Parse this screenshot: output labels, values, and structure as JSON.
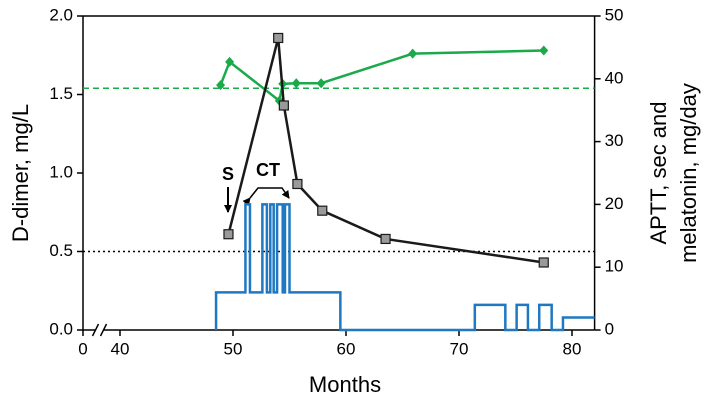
{
  "chart_data": {
    "type": "line",
    "x_label": "Months",
    "y_label": "D-dimer, mg/L",
    "y2_label": [
      "APTT, sec and",
      "melatonin, mg/day"
    ],
    "annotations": [
      "S",
      "CT"
    ],
    "xlim": [
      0,
      82
    ],
    "x_axis_break": true,
    "xticks": [
      0,
      40,
      50,
      60,
      70,
      80
    ],
    "ylim": [
      0,
      2
    ],
    "yticks": [
      {
        "value": 0,
        "label": "0.0"
      },
      {
        "value": 0.5,
        "label": "0.5"
      },
      {
        "value": 1,
        "label": "1.0"
      },
      {
        "value": 1.5,
        "label": "1.5"
      },
      {
        "value": 2,
        "label": "2.0"
      }
    ],
    "y2lim": [
      0,
      50
    ],
    "y2ticks": [
      0,
      10,
      20,
      30,
      40,
      50
    ],
    "reference_lines": [
      {
        "value": 0.5,
        "axis": "y",
        "color": "#000000",
        "style": "dotted"
      },
      {
        "value": 38.5,
        "axis": "y2",
        "color": "#1aaa4a",
        "style": "dashed"
      }
    ],
    "series": [
      {
        "color": "#1f78c1",
        "axis": "y2",
        "step": true,
        "marker": "none",
        "x": [
          48.5,
          51.1,
          51.5,
          52.6,
          53.0,
          53.3,
          53.6,
          53.9,
          54.4,
          54.6,
          55.0,
          59.5,
          71.4,
          74.1,
          75.1,
          76.1,
          77.1,
          78.2,
          79.2,
          82
        ],
        "values": [
          6,
          20,
          6,
          20,
          6,
          20,
          6,
          20,
          6,
          20,
          6,
          0,
          4,
          0,
          4,
          0,
          4,
          0,
          2,
          2
        ]
      },
      {
        "color": "#1aaa4a",
        "axis": "y2",
        "marker": "diamond",
        "x": [
          48.9,
          49.7,
          54.1,
          54.4,
          55.6,
          57.8,
          65.9,
          77.5
        ],
        "values": [
          39,
          42.7,
          36.5,
          39.2,
          39.3,
          39.3,
          44,
          44.5
        ]
      },
      {
        "color": "#1a1a1a",
        "axis": "y",
        "marker": "square",
        "x": [
          49.6,
          54.0,
          54.5,
          55.7,
          57.9,
          63.5,
          77.5
        ],
        "values": [
          0.61,
          1.86,
          1.43,
          0.93,
          0.76,
          0.58,
          0.43
        ]
      }
    ]
  }
}
